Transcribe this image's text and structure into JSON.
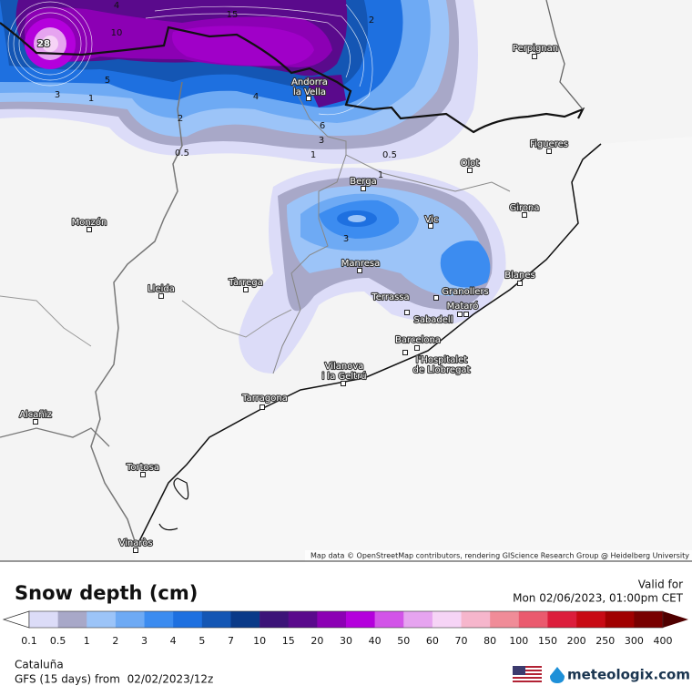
{
  "map": {
    "cities": [
      {
        "label": [
          "Perpignan"
        ]
      },
      {
        "label": [
          "Andorra",
          "la Vella"
        ]
      },
      {
        "label": [
          "Figueres"
        ]
      },
      {
        "label": [
          "Olot"
        ]
      },
      {
        "label": [
          "Berga"
        ]
      },
      {
        "label": [
          "Girona"
        ]
      },
      {
        "label": [
          "Vic"
        ]
      },
      {
        "label": [
          "Monzón"
        ]
      },
      {
        "label": [
          "Manresa"
        ]
      },
      {
        "label": [
          "Lleida"
        ]
      },
      {
        "label": [
          "Tàrrega"
        ]
      },
      {
        "label": [
          "Granollers"
        ]
      },
      {
        "label": [
          "Blanes"
        ]
      },
      {
        "label": [
          "Terrassa"
        ]
      },
      {
        "label": [
          "Mataró"
        ]
      },
      {
        "label": [
          "Sabadell"
        ]
      },
      {
        "label": [
          "Barcelona"
        ]
      },
      {
        "label": [
          "l'Hospitalet",
          "de Llobregat"
        ]
      },
      {
        "label": [
          "Vilanova",
          "i la Geltrú"
        ]
      },
      {
        "label": [
          "Tarragona"
        ]
      },
      {
        "label": [
          "Alcañiz"
        ]
      },
      {
        "label": [
          "Tortosa"
        ]
      },
      {
        "label": [
          "Vinaròs"
        ]
      }
    ],
    "contour_labels": [
      "28",
      "15",
      "10",
      "4",
      "2",
      "5",
      "3",
      "1",
      "4",
      "2",
      "6",
      "3",
      "1",
      "0.5",
      "0.5",
      "1",
      "3"
    ],
    "attribution": "Map data © OpenStreetMap contributors, rendering GIScience Research Group @ Heidelberg University"
  },
  "legend": {
    "title": "Snow depth (cm)",
    "valid_label": "Valid for",
    "valid_time": "Mon 02/06/2023, 01:00pm CET",
    "ticks": [
      0.1,
      0.5,
      1,
      2,
      3,
      4,
      5,
      7,
      10,
      15,
      20,
      30,
      40,
      50,
      60,
      70,
      80,
      100,
      150,
      200,
      250,
      300,
      400
    ],
    "colors": [
      "#dcdcf8",
      "#a8a8c8",
      "#9cc4f8",
      "#6eaaf4",
      "#3c8cf0",
      "#1e70e0",
      "#1456b4",
      "#0a3a88",
      "#3c1478",
      "#5a0a8c",
      "#8c00b4",
      "#b400dc",
      "#d254e8",
      "#e6a4f0",
      "#f6d4f6",
      "#f6b6cc",
      "#f08c98",
      "#ea5a6e",
      "#dc1e3c",
      "#c80a14",
      "#a00000",
      "#780000"
    ],
    "under_color": "#ffffff",
    "over_color": "#500000"
  },
  "footer": {
    "region": "Cataluña",
    "model": "GFS (15 days) from  02/02/2023/12z",
    "brand": "meteologix.com"
  }
}
